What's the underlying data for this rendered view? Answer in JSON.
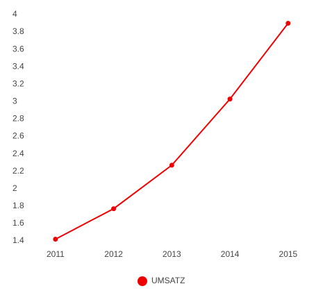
{
  "chart_data": {
    "type": "line",
    "categories": [
      "2011",
      "2012",
      "2013",
      "2014",
      "2015"
    ],
    "series": [
      {
        "name": "UMSATZ",
        "color": "#ee0000",
        "values": [
          1.42,
          1.77,
          2.27,
          3.03,
          3.9
        ]
      }
    ],
    "ylim": [
      1.4,
      4
    ],
    "yticks": [
      1.4,
      1.6,
      1.8,
      2,
      2.2,
      2.4,
      2.6,
      2.8,
      3,
      3.2,
      3.4,
      3.6,
      3.8,
      4
    ],
    "grid": false,
    "legend": "bottom"
  }
}
